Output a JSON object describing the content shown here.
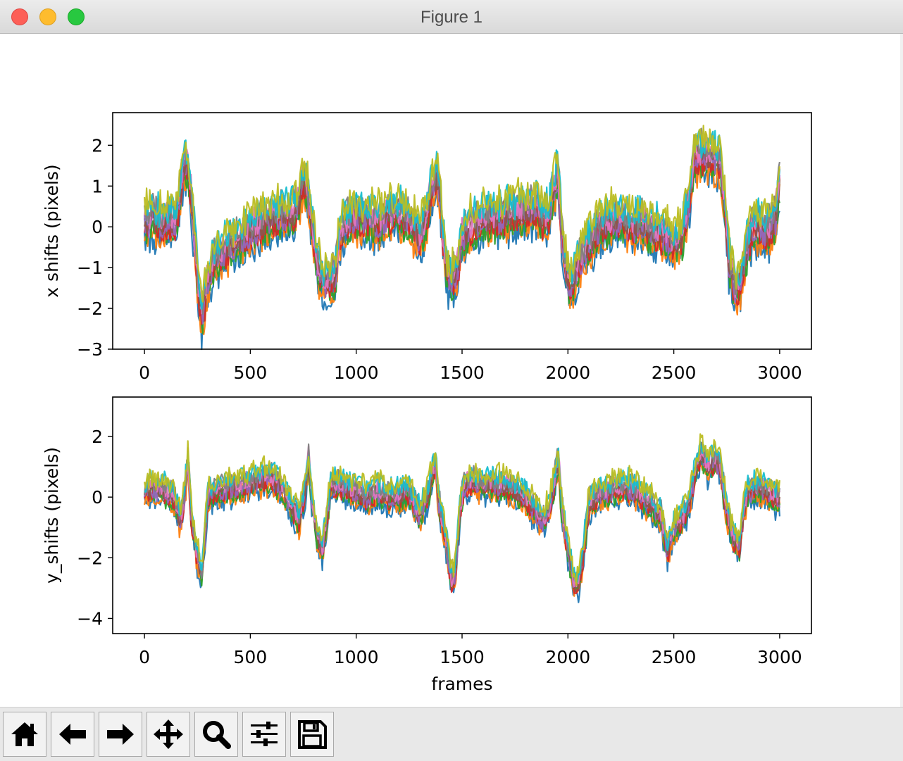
{
  "window": {
    "title": "Figure 1"
  },
  "toolbar": {
    "buttons": [
      {
        "name": "home-button",
        "icon": "home-icon"
      },
      {
        "name": "back-button",
        "icon": "arrow-left-icon"
      },
      {
        "name": "forward-button",
        "icon": "arrow-right-icon"
      },
      {
        "name": "pan-button",
        "icon": "move-icon"
      },
      {
        "name": "zoom-button",
        "icon": "magnifier-icon"
      },
      {
        "name": "configure-subplots-button",
        "icon": "sliders-icon"
      },
      {
        "name": "save-button",
        "icon": "floppy-disk-icon"
      }
    ]
  },
  "colors": {
    "series_palette": [
      "#1f77b4",
      "#ff7f0e",
      "#2ca02c",
      "#d62728",
      "#9467bd",
      "#8c564b",
      "#e377c2",
      "#7f7f7f",
      "#17becf",
      "#bcbd22"
    ],
    "axes": "#000000",
    "background": "#ffffff"
  },
  "chart_data": [
    {
      "type": "line",
      "ylabel": "x shifts (pixels)",
      "xlabel": "",
      "xlim": [
        -150,
        3150
      ],
      "ylim": [
        -3,
        2.8
      ],
      "xticks": [
        "0",
        "500",
        "1000",
        "1500",
        "2000",
        "2500",
        "3000"
      ],
      "yticks": [
        "−3",
        "−2",
        "−1",
        "0",
        "1",
        "2"
      ],
      "band_halfwidth": 0.45,
      "series_count": 10,
      "center": [
        [
          0,
          0.1
        ],
        [
          40,
          0.2
        ],
        [
          80,
          0.1
        ],
        [
          120,
          0.15
        ],
        [
          150,
          0.2
        ],
        [
          170,
          0.9
        ],
        [
          185,
          1.6
        ],
        [
          200,
          1.5
        ],
        [
          220,
          0.8
        ],
        [
          240,
          -0.5
        ],
        [
          255,
          -1.5
        ],
        [
          270,
          -2.2
        ],
        [
          285,
          -1.8
        ],
        [
          300,
          -1.3
        ],
        [
          320,
          -0.9
        ],
        [
          350,
          -0.7
        ],
        [
          400,
          -0.5
        ],
        [
          450,
          -0.3
        ],
        [
          500,
          -0.1
        ],
        [
          550,
          0.05
        ],
        [
          600,
          0.2
        ],
        [
          650,
          0.3
        ],
        [
          700,
          0.3
        ],
        [
          730,
          0.6
        ],
        [
          750,
          1.2
        ],
        [
          770,
          0.9
        ],
        [
          790,
          0.2
        ],
        [
          810,
          -0.7
        ],
        [
          830,
          -1.2
        ],
        [
          850,
          -1.4
        ],
        [
          870,
          -1.3
        ],
        [
          900,
          -1.2
        ],
        [
          920,
          -0.3
        ],
        [
          950,
          0.1
        ],
        [
          1000,
          0.2
        ],
        [
          1050,
          0.2
        ],
        [
          1100,
          0.1
        ],
        [
          1150,
          0.3
        ],
        [
          1200,
          0.3
        ],
        [
          1250,
          0.2
        ],
        [
          1300,
          -0.3
        ],
        [
          1330,
          0.2
        ],
        [
          1360,
          1.0
        ],
        [
          1380,
          1.2
        ],
        [
          1395,
          0.9
        ],
        [
          1410,
          -0.3
        ],
        [
          1430,
          -1.2
        ],
        [
          1450,
          -1.3
        ],
        [
          1480,
          -1.0
        ],
        [
          1500,
          -0.2
        ],
        [
          1550,
          0.0
        ],
        [
          1600,
          0.2
        ],
        [
          1650,
          0.2
        ],
        [
          1700,
          0.3
        ],
        [
          1750,
          0.3
        ],
        [
          1800,
          0.4
        ],
        [
          1850,
          0.5
        ],
        [
          1880,
          0.2
        ],
        [
          1910,
          0.3
        ],
        [
          1930,
          0.9
        ],
        [
          1950,
          1.3
        ],
        [
          1960,
          0.8
        ],
        [
          1970,
          -0.1
        ],
        [
          1990,
          -1.0
        ],
        [
          2010,
          -1.4
        ],
        [
          2030,
          -1.2
        ],
        [
          2060,
          -0.8
        ],
        [
          2100,
          -0.4
        ],
        [
          2150,
          0.0
        ],
        [
          2200,
          0.1
        ],
        [
          2250,
          0.2
        ],
        [
          2300,
          0.0
        ],
        [
          2350,
          0.1
        ],
        [
          2400,
          -0.1
        ],
        [
          2450,
          -0.2
        ],
        [
          2500,
          -0.4
        ],
        [
          2540,
          -0.2
        ],
        [
          2570,
          0.6
        ],
        [
          2600,
          1.7
        ],
        [
          2640,
          1.8
        ],
        [
          2680,
          1.7
        ],
        [
          2720,
          1.6
        ],
        [
          2740,
          0.7
        ],
        [
          2760,
          -0.8
        ],
        [
          2790,
          -1.6
        ],
        [
          2820,
          -1.2
        ],
        [
          2840,
          -0.7
        ],
        [
          2870,
          -0.1
        ],
        [
          2900,
          0.0
        ],
        [
          2940,
          -0.1
        ],
        [
          2980,
          0.2
        ],
        [
          3000,
          1.1
        ]
      ]
    },
    {
      "type": "line",
      "ylabel": "y_shifts (pixels)",
      "xlabel": "frames",
      "xlim": [
        -150,
        3150
      ],
      "ylim": [
        -4.5,
        3.3
      ],
      "xticks": [
        "0",
        "500",
        "1000",
        "1500",
        "2000",
        "2500",
        "3000"
      ],
      "yticks": [
        "−4",
        "−2",
        "0",
        "2"
      ],
      "band_halfwidth": 0.4,
      "series_count": 10,
      "center": [
        [
          0,
          0.1
        ],
        [
          30,
          0.3
        ],
        [
          60,
          0.2
        ],
        [
          100,
          0.2
        ],
        [
          140,
          0.0
        ],
        [
          170,
          -0.8
        ],
        [
          190,
          0.1
        ],
        [
          205,
          1.3
        ],
        [
          220,
          -0.5
        ],
        [
          245,
          -1.8
        ],
        [
          270,
          -2.6
        ],
        [
          285,
          -1.4
        ],
        [
          300,
          0.1
        ],
        [
          350,
          0.2
        ],
        [
          400,
          0.3
        ],
        [
          450,
          0.4
        ],
        [
          500,
          0.5
        ],
        [
          550,
          0.6
        ],
        [
          600,
          0.6
        ],
        [
          650,
          0.3
        ],
        [
          700,
          -0.4
        ],
        [
          730,
          -0.8
        ],
        [
          760,
          0.3
        ],
        [
          775,
          1.3
        ],
        [
          790,
          0.0
        ],
        [
          810,
          -1.1
        ],
        [
          840,
          -1.8
        ],
        [
          860,
          -0.7
        ],
        [
          880,
          0.4
        ],
        [
          900,
          0.4
        ],
        [
          950,
          0.3
        ],
        [
          1000,
          0.2
        ],
        [
          1050,
          0.0
        ],
        [
          1100,
          0.2
        ],
        [
          1150,
          0.0
        ],
        [
          1200,
          0.1
        ],
        [
          1250,
          0.1
        ],
        [
          1300,
          -0.6
        ],
        [
          1340,
          0.1
        ],
        [
          1360,
          0.8
        ],
        [
          1375,
          1.1
        ],
        [
          1390,
          -0.2
        ],
        [
          1420,
          -1.2
        ],
        [
          1450,
          -2.8
        ],
        [
          1470,
          -2.4
        ],
        [
          1490,
          -0.5
        ],
        [
          1510,
          0.4
        ],
        [
          1550,
          0.5
        ],
        [
          1600,
          0.4
        ],
        [
          1650,
          0.4
        ],
        [
          1700,
          0.4
        ],
        [
          1750,
          0.2
        ],
        [
          1800,
          0.0
        ],
        [
          1850,
          -0.5
        ],
        [
          1880,
          -0.8
        ],
        [
          1910,
          -0.4
        ],
        [
          1930,
          0.3
        ],
        [
          1955,
          1.2
        ],
        [
          1970,
          -0.3
        ],
        [
          2000,
          -1.8
        ],
        [
          2030,
          -2.8
        ],
        [
          2050,
          -2.9
        ],
        [
          2070,
          -2.0
        ],
        [
          2100,
          -0.2
        ],
        [
          2150,
          0.1
        ],
        [
          2200,
          0.2
        ],
        [
          2250,
          0.3
        ],
        [
          2300,
          0.3
        ],
        [
          2350,
          0.0
        ],
        [
          2400,
          -0.3
        ],
        [
          2440,
          -0.6
        ],
        [
          2470,
          -1.8
        ],
        [
          2500,
          -1.0
        ],
        [
          2540,
          -0.7
        ],
        [
          2570,
          -0.2
        ],
        [
          2600,
          0.8
        ],
        [
          2630,
          1.5
        ],
        [
          2660,
          1.0
        ],
        [
          2690,
          1.2
        ],
        [
          2720,
          1.0
        ],
        [
          2750,
          -0.5
        ],
        [
          2780,
          -1.3
        ],
        [
          2810,
          -1.6
        ],
        [
          2830,
          -0.4
        ],
        [
          2850,
          0.1
        ],
        [
          2900,
          0.3
        ],
        [
          2950,
          0.2
        ],
        [
          2980,
          0.0
        ],
        [
          3000,
          0.0
        ]
      ]
    }
  ]
}
